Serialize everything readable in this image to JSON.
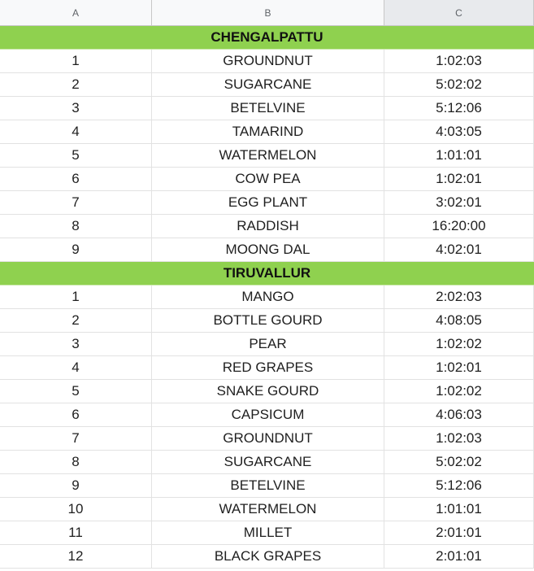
{
  "columns": {
    "a": "A",
    "b": "B",
    "c": "C"
  },
  "sections": [
    {
      "title": "CHENGALPATTU",
      "rows": [
        {
          "n": "1",
          "crop": "GROUNDNUT",
          "time": "1:02:03"
        },
        {
          "n": "2",
          "crop": "SUGARCANE",
          "time": "5:02:02"
        },
        {
          "n": "3",
          "crop": "BETELVINE",
          "time": "5:12:06"
        },
        {
          "n": "4",
          "crop": "TAMARIND",
          "time": "4:03:05"
        },
        {
          "n": "5",
          "crop": "WATERMELON",
          "time": "1:01:01"
        },
        {
          "n": "6",
          "crop": "COW PEA",
          "time": "1:02:01"
        },
        {
          "n": "7",
          "crop": "EGG PLANT",
          "time": "3:02:01"
        },
        {
          "n": "8",
          "crop": "RADDISH",
          "time": "16:20:00"
        },
        {
          "n": "9",
          "crop": "MOONG DAL",
          "time": "4:02:01"
        }
      ]
    },
    {
      "title": "TIRUVALLUR",
      "rows": [
        {
          "n": "1",
          "crop": "MANGO",
          "time": "2:02:03"
        },
        {
          "n": "2",
          "crop": "BOTTLE GOURD",
          "time": "4:08:05"
        },
        {
          "n": "3",
          "crop": "PEAR",
          "time": "1:02:02"
        },
        {
          "n": "4",
          "crop": "RED GRAPES",
          "time": "1:02:01"
        },
        {
          "n": "5",
          "crop": "SNAKE GOURD",
          "time": "1:02:02"
        },
        {
          "n": "6",
          "crop": "CAPSICUM",
          "time": "4:06:03"
        },
        {
          "n": "7",
          "crop": "GROUNDNUT",
          "time": "1:02:03"
        },
        {
          "n": "8",
          "crop": "SUGARCANE",
          "time": "5:02:02"
        },
        {
          "n": "9",
          "crop": "BETELVINE",
          "time": "5:12:06"
        },
        {
          "n": "10",
          "crop": "WATERMELON",
          "time": "1:01:01"
        },
        {
          "n": "11",
          "crop": "MILLET",
          "time": "2:01:01"
        },
        {
          "n": "12",
          "crop": "BLACK GRAPES",
          "time": "2:01:01"
        }
      ]
    }
  ]
}
